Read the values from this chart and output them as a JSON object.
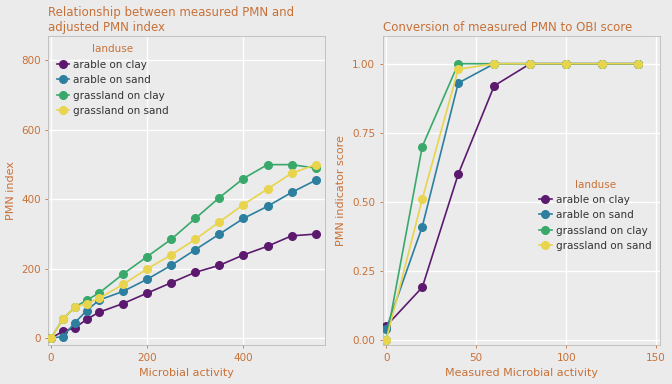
{
  "plot1": {
    "title": "Relationship between measured PMN and\nadjusted PMN index",
    "xlabel": "Microbial activity",
    "ylabel": "PMN index",
    "series": {
      "arable on clay": {
        "color": "#5c1a6e",
        "x": [
          0,
          25,
          50,
          75,
          100,
          150,
          200,
          250,
          300,
          350,
          400,
          450,
          500,
          550
        ],
        "y": [
          0,
          20,
          30,
          55,
          75,
          100,
          130,
          160,
          190,
          210,
          240,
          265,
          295,
          300
        ]
      },
      "arable on sand": {
        "color": "#2d7f9f",
        "x": [
          0,
          25,
          50,
          75,
          100,
          150,
          200,
          250,
          300,
          350,
          400,
          450,
          500,
          550
        ],
        "y": [
          0,
          5,
          45,
          80,
          110,
          135,
          170,
          210,
          255,
          300,
          345,
          380,
          420,
          455
        ]
      },
      "grassland on clay": {
        "color": "#39a96b",
        "x": [
          0,
          25,
          50,
          75,
          100,
          150,
          200,
          250,
          300,
          350,
          400,
          450,
          500,
          550
        ],
        "y": [
          0,
          55,
          90,
          110,
          130,
          185,
          235,
          285,
          345,
          405,
          460,
          500,
          500,
          490
        ]
      },
      "grassland on sand": {
        "color": "#e8d44d",
        "x": [
          0,
          25,
          50,
          75,
          100,
          150,
          200,
          250,
          300,
          350,
          400,
          450,
          500,
          550
        ],
        "y": [
          0,
          55,
          90,
          100,
          115,
          155,
          200,
          240,
          285,
          335,
          385,
          430,
          475,
          500
        ]
      }
    },
    "xlim": [
      -5,
      570
    ],
    "ylim": [
      -20,
      870
    ],
    "yticks": [
      0,
      200,
      400,
      600,
      800
    ],
    "xticks": [
      0,
      200,
      400
    ]
  },
  "plot2": {
    "title": "Conversion of measured PMN to OBI score",
    "xlabel": "Measured Microbial activity",
    "ylabel": "PMN indicator score",
    "series": {
      "arable on clay": {
        "color": "#5c1a6e",
        "x": [
          0,
          20,
          40,
          60,
          80,
          100,
          120,
          140
        ],
        "y": [
          0.05,
          0.19,
          0.6,
          0.92,
          1.0,
          1.0,
          1.0,
          1.0
        ]
      },
      "arable on sand": {
        "color": "#2d7f9f",
        "x": [
          0,
          20,
          40,
          60,
          80,
          100,
          120,
          140
        ],
        "y": [
          0.04,
          0.41,
          0.93,
          1.0,
          1.0,
          1.0,
          1.0,
          1.0
        ]
      },
      "grassland on clay": {
        "color": "#39a96b",
        "x": [
          0,
          20,
          40,
          60,
          80,
          100,
          120,
          140
        ],
        "y": [
          0.0,
          0.7,
          1.0,
          1.0,
          1.0,
          1.0,
          1.0,
          1.0
        ]
      },
      "grassland on sand": {
        "color": "#e8d44d",
        "x": [
          0,
          20,
          40,
          60,
          80,
          100,
          120,
          140
        ],
        "y": [
          0.0,
          0.51,
          0.98,
          1.0,
          1.0,
          1.0,
          1.0,
          1.0
        ]
      }
    },
    "xlim": [
      -2,
      152
    ],
    "ylim": [
      -0.02,
      1.1
    ],
    "yticks": [
      0.0,
      0.25,
      0.5,
      0.75,
      1.0
    ],
    "xticks": [
      0,
      50,
      100,
      150
    ]
  },
  "bg_color": "#ebebeb",
  "grid_color": "#ffffff",
  "title_color": "#c87137",
  "label_color": "#c87137",
  "tick_color": "#c87137",
  "legend_title_color": "#c87137",
  "legend_text_color": "#333333",
  "title_fontsize": 8.5,
  "label_fontsize": 8,
  "tick_fontsize": 7.5,
  "legend_fontsize": 7.5,
  "marker_size": 5.5,
  "line_width": 1.2
}
